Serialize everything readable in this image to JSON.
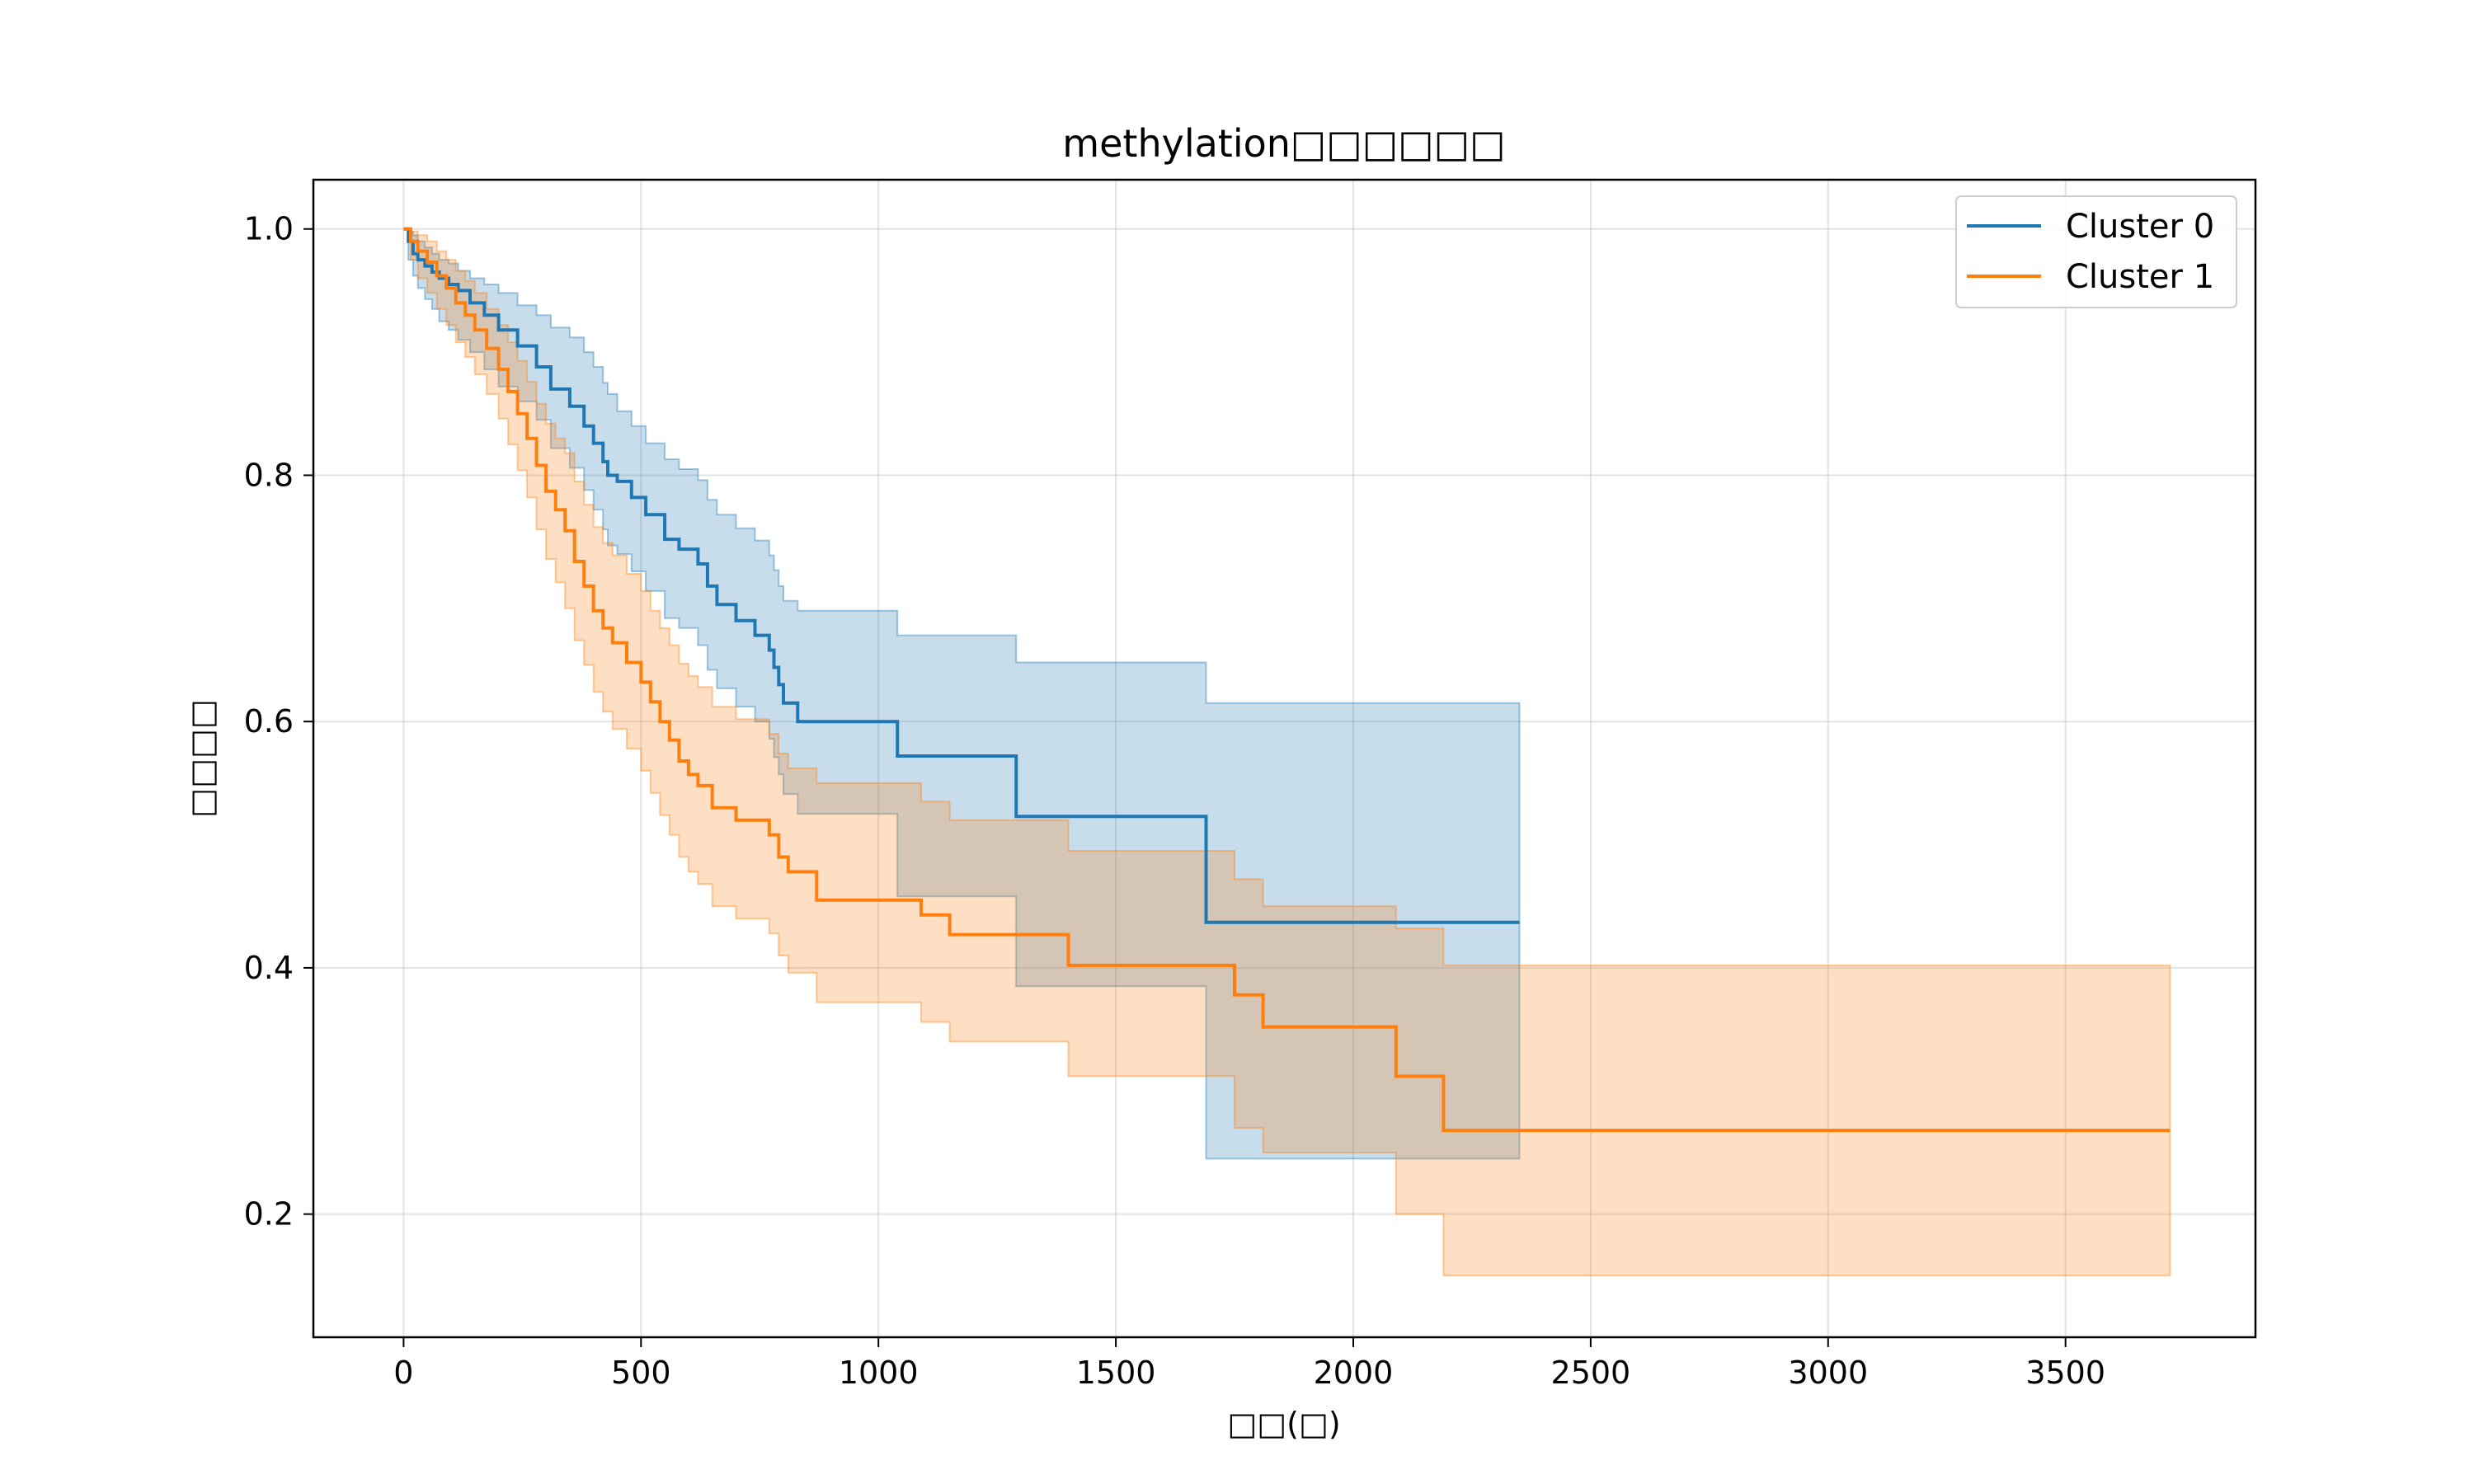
{
  "chart_data": {
    "type": "line",
    "step": true,
    "title": "methylation□□□□□□",
    "xlabel": "□□(□)",
    "ylabel": "□□□□",
    "xlim": [
      -190,
      3900
    ],
    "ylim": [
      0.1,
      1.04
    ],
    "x_ticks": [
      0,
      500,
      1000,
      1500,
      2000,
      2500,
      3000,
      3500
    ],
    "y_ticks": [
      0.2,
      0.4,
      0.6,
      0.8,
      1.0
    ],
    "grid": true,
    "legend_position": "upper right",
    "series": [
      {
        "name": "Cluster 0",
        "color": "#1f77b4",
        "fill_color": "#1f77b4",
        "x": [
          0,
          10,
          20,
          30,
          45,
          60,
          75,
          95,
          115,
          140,
          170,
          200,
          240,
          280,
          310,
          350,
          380,
          400,
          420,
          430,
          450,
          480,
          510,
          550,
          580,
          620,
          640,
          660,
          700,
          740,
          770,
          780,
          790,
          800,
          830,
          870,
          1040,
          1290,
          1690,
          2350
        ],
        "y": [
          1.0,
          0.99,
          0.98,
          0.975,
          0.97,
          0.965,
          0.96,
          0.955,
          0.95,
          0.94,
          0.93,
          0.918,
          0.905,
          0.888,
          0.87,
          0.856,
          0.84,
          0.826,
          0.811,
          0.8,
          0.795,
          0.782,
          0.768,
          0.748,
          0.74,
          0.728,
          0.71,
          0.695,
          0.682,
          0.67,
          0.658,
          0.644,
          0.63,
          0.615,
          0.6,
          0.6,
          0.572,
          0.523,
          0.437,
          0.437
        ],
        "upper": [
          1.0,
          0.998,
          0.995,
          0.99,
          0.985,
          0.98,
          0.975,
          0.972,
          0.966,
          0.96,
          0.955,
          0.948,
          0.938,
          0.93,
          0.92,
          0.912,
          0.9,
          0.888,
          0.875,
          0.866,
          0.852,
          0.84,
          0.826,
          0.813,
          0.805,
          0.796,
          0.78,
          0.768,
          0.757,
          0.747,
          0.735,
          0.723,
          0.71,
          0.698,
          0.69,
          0.69,
          0.67,
          0.648,
          0.615,
          0.615
        ],
        "lower": [
          1.0,
          0.975,
          0.962,
          0.952,
          0.943,
          0.935,
          0.925,
          0.918,
          0.91,
          0.9,
          0.886,
          0.872,
          0.86,
          0.845,
          0.822,
          0.806,
          0.788,
          0.772,
          0.756,
          0.743,
          0.736,
          0.722,
          0.706,
          0.684,
          0.676,
          0.662,
          0.642,
          0.627,
          0.612,
          0.6,
          0.586,
          0.571,
          0.557,
          0.541,
          0.525,
          0.525,
          0.458,
          0.385,
          0.245,
          0.245
        ]
      },
      {
        "name": "Cluster 1",
        "color": "#ff7f0e",
        "fill_color": "#ff7f0e",
        "x": [
          0,
          15,
          30,
          50,
          70,
          90,
          110,
          130,
          150,
          175,
          200,
          220,
          240,
          260,
          280,
          300,
          320,
          340,
          360,
          380,
          400,
          420,
          440,
          470,
          500,
          520,
          540,
          560,
          580,
          600,
          620,
          650,
          700,
          770,
          790,
          810,
          870,
          1090,
          1150,
          1400,
          1750,
          1810,
          2090,
          2190,
          3720
        ],
        "y": [
          1.0,
          0.99,
          0.982,
          0.973,
          0.962,
          0.952,
          0.94,
          0.93,
          0.918,
          0.903,
          0.886,
          0.868,
          0.85,
          0.83,
          0.808,
          0.787,
          0.772,
          0.755,
          0.73,
          0.71,
          0.69,
          0.676,
          0.664,
          0.648,
          0.632,
          0.616,
          0.6,
          0.585,
          0.568,
          0.557,
          0.548,
          0.53,
          0.52,
          0.508,
          0.49,
          0.478,
          0.455,
          0.443,
          0.427,
          0.402,
          0.378,
          0.352,
          0.312,
          0.268,
          0.268
        ],
        "upper": [
          1.0,
          0.998,
          0.995,
          0.99,
          0.982,
          0.975,
          0.966,
          0.958,
          0.948,
          0.935,
          0.922,
          0.908,
          0.893,
          0.876,
          0.858,
          0.842,
          0.83,
          0.818,
          0.795,
          0.776,
          0.758,
          0.745,
          0.735,
          0.72,
          0.706,
          0.69,
          0.676,
          0.662,
          0.647,
          0.637,
          0.628,
          0.612,
          0.602,
          0.59,
          0.574,
          0.562,
          0.55,
          0.535,
          0.52,
          0.495,
          0.472,
          0.45,
          0.432,
          0.402,
          0.402
        ],
        "lower": [
          1.0,
          0.975,
          0.96,
          0.948,
          0.935,
          0.922,
          0.908,
          0.896,
          0.882,
          0.866,
          0.846,
          0.825,
          0.804,
          0.782,
          0.756,
          0.732,
          0.713,
          0.692,
          0.666,
          0.646,
          0.624,
          0.608,
          0.594,
          0.578,
          0.56,
          0.542,
          0.524,
          0.508,
          0.49,
          0.478,
          0.468,
          0.45,
          0.44,
          0.428,
          0.41,
          0.396,
          0.372,
          0.356,
          0.34,
          0.312,
          0.27,
          0.25,
          0.2,
          0.15,
          0.15
        ]
      }
    ]
  }
}
